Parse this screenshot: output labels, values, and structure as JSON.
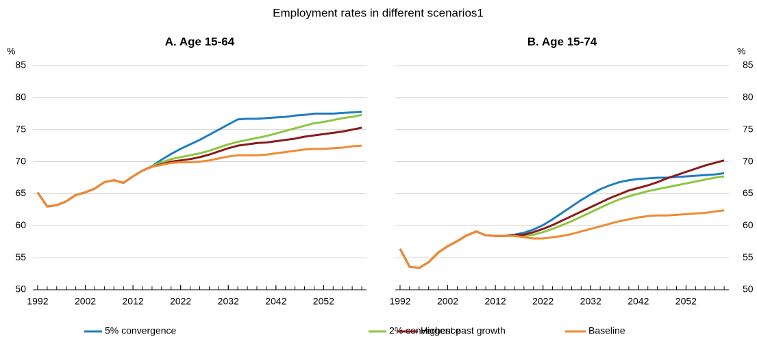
{
  "title": "Employment rates in different scenarios1",
  "chart_data": [
    {
      "type": "line",
      "title": "A. Age 15-64",
      "ylabel": "%",
      "yaxis_side": "left",
      "grid": true,
      "xlim": [
        1991,
        2061
      ],
      "xticks": [
        1992,
        2002,
        2012,
        2022,
        2032,
        2042,
        2052
      ],
      "ylim": [
        50,
        85
      ],
      "yticks": [
        50,
        55,
        60,
        65,
        70,
        75,
        80,
        85
      ],
      "x": [
        1992,
        1994,
        1996,
        1998,
        2000,
        2002,
        2004,
        2006,
        2008,
        2010,
        2012,
        2014,
        2016,
        2018,
        2020,
        2022,
        2024,
        2026,
        2028,
        2030,
        2032,
        2034,
        2036,
        2038,
        2040,
        2042,
        2044,
        2046,
        2048,
        2050,
        2052,
        2054,
        2056,
        2058,
        2060
      ],
      "series": [
        {
          "name": "5% convergence",
          "color": "#1f7dc1",
          "values": [
            65.2,
            63.0,
            63.2,
            63.8,
            64.8,
            65.2,
            65.8,
            66.8,
            67.1,
            66.7,
            67.7,
            68.6,
            69.3,
            70.3,
            71.2,
            72.0,
            72.7,
            73.4,
            74.2,
            75.0,
            75.8,
            76.6,
            76.7,
            76.7,
            76.8,
            76.9,
            77.0,
            77.2,
            77.3,
            77.5,
            77.5,
            77.5,
            77.6,
            77.7,
            77.8
          ]
        },
        {
          "name": "2% convergence",
          "color": "#8cc63f",
          "values": [
            65.2,
            63.0,
            63.2,
            63.8,
            64.8,
            65.2,
            65.8,
            66.8,
            67.1,
            66.7,
            67.7,
            68.6,
            69.3,
            69.9,
            70.4,
            70.7,
            71.0,
            71.3,
            71.7,
            72.2,
            72.7,
            73.1,
            73.4,
            73.7,
            74.0,
            74.4,
            74.8,
            75.2,
            75.6,
            76.0,
            76.2,
            76.5,
            76.8,
            77.0,
            77.3
          ]
        },
        {
          "name": "Highest past growth",
          "color": "#8b1a1a",
          "values": [
            65.2,
            63.0,
            63.2,
            63.8,
            64.8,
            65.2,
            65.8,
            66.8,
            67.1,
            66.7,
            67.7,
            68.6,
            69.2,
            69.6,
            70.0,
            70.2,
            70.4,
            70.7,
            71.1,
            71.6,
            72.1,
            72.5,
            72.7,
            72.9,
            73.0,
            73.2,
            73.4,
            73.6,
            73.9,
            74.1,
            74.3,
            74.5,
            74.7,
            75.0,
            75.3
          ]
        },
        {
          "name": "Baseline",
          "color": "#f08a33",
          "values": [
            65.2,
            63.0,
            63.2,
            63.8,
            64.8,
            65.2,
            65.8,
            66.8,
            67.1,
            66.7,
            67.7,
            68.6,
            69.2,
            69.5,
            69.8,
            69.9,
            69.9,
            70.0,
            70.2,
            70.5,
            70.8,
            71.0,
            71.0,
            71.0,
            71.1,
            71.3,
            71.5,
            71.7,
            71.9,
            72.0,
            72.0,
            72.1,
            72.2,
            72.4,
            72.5
          ]
        }
      ]
    },
    {
      "type": "line",
      "title": "B. Age 15-74",
      "ylabel": "%",
      "yaxis_side": "right",
      "grid": true,
      "xlim": [
        1991,
        2061
      ],
      "xticks": [
        1992,
        2002,
        2012,
        2022,
        2032,
        2042,
        2052
      ],
      "ylim": [
        50,
        85
      ],
      "yticks": [
        50,
        55,
        60,
        65,
        70,
        75,
        80,
        85
      ],
      "x": [
        1992,
        1994,
        1996,
        1998,
        2000,
        2002,
        2004,
        2006,
        2008,
        2010,
        2012,
        2014,
        2016,
        2018,
        2020,
        2022,
        2024,
        2026,
        2028,
        2030,
        2032,
        2034,
        2036,
        2038,
        2040,
        2042,
        2044,
        2046,
        2048,
        2050,
        2052,
        2054,
        2056,
        2058,
        2060
      ],
      "series": [
        {
          "color": "#1f7dc1",
          "values": [
            56.4,
            53.6,
            53.4,
            54.3,
            55.8,
            56.8,
            57.6,
            58.5,
            59.1,
            58.5,
            58.4,
            58.4,
            58.6,
            58.9,
            59.4,
            60.1,
            61.0,
            62.0,
            63.0,
            64.0,
            64.9,
            65.7,
            66.3,
            66.8,
            67.1,
            67.3,
            67.4,
            67.5,
            67.5,
            67.6,
            67.7,
            67.8,
            67.9,
            68.0,
            68.2
          ]
        },
        {
          "color": "#8cc63f",
          "values": [
            56.4,
            53.6,
            53.4,
            54.3,
            55.8,
            56.8,
            57.6,
            58.5,
            59.1,
            58.5,
            58.4,
            58.4,
            58.4,
            58.4,
            58.6,
            59.0,
            59.5,
            60.1,
            60.7,
            61.4,
            62.1,
            62.8,
            63.5,
            64.1,
            64.6,
            65.0,
            65.4,
            65.7,
            66.0,
            66.3,
            66.6,
            66.9,
            67.2,
            67.5,
            67.7
          ]
        },
        {
          "color": "#8b1a1a",
          "values": [
            56.4,
            53.6,
            53.4,
            54.3,
            55.8,
            56.8,
            57.6,
            58.5,
            59.1,
            58.5,
            58.4,
            58.4,
            58.5,
            58.6,
            59.0,
            59.5,
            60.1,
            60.8,
            61.5,
            62.2,
            62.9,
            63.6,
            64.3,
            64.9,
            65.5,
            65.9,
            66.3,
            66.8,
            67.4,
            67.9,
            68.4,
            68.9,
            69.4,
            69.8,
            70.2
          ]
        },
        {
          "color": "#f08a33",
          "values": [
            56.4,
            53.6,
            53.4,
            54.3,
            55.8,
            56.8,
            57.6,
            58.5,
            59.1,
            58.5,
            58.4,
            58.4,
            58.4,
            58.2,
            58.0,
            58.0,
            58.2,
            58.4,
            58.7,
            59.1,
            59.5,
            59.9,
            60.3,
            60.7,
            61.0,
            61.3,
            61.5,
            61.6,
            61.6,
            61.7,
            61.8,
            61.9,
            62.0,
            62.2,
            62.4
          ]
        }
      ]
    }
  ]
}
